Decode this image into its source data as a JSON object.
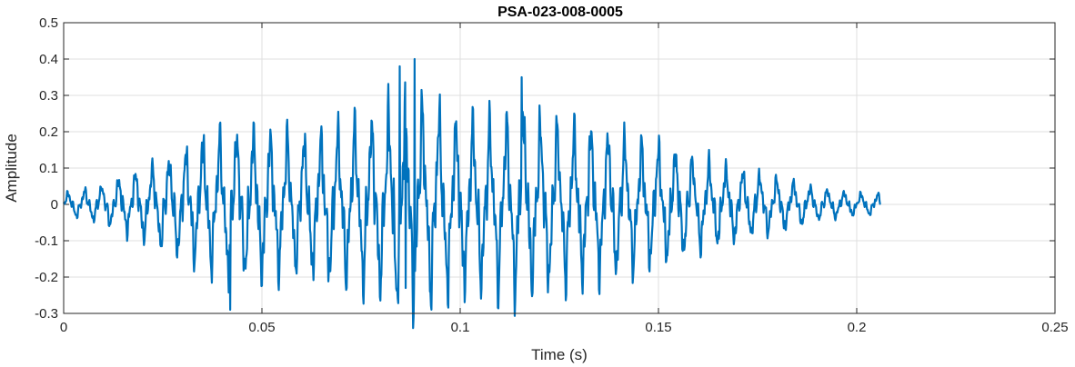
{
  "chart_data": {
    "type": "line",
    "title": "PSA-023-008-0005",
    "xlabel": "Time (s)",
    "ylabel": "Amplitude",
    "xlim": [
      0,
      0.25
    ],
    "ylim": [
      -0.3,
      0.5
    ],
    "x_ticks": [
      "0",
      "0.05",
      "0.1",
      "0.15",
      "0.2",
      "0.25"
    ],
    "y_ticks": [
      "-0.3",
      "-0.2",
      "-0.1",
      "0",
      "0.1",
      "0.2",
      "0.3",
      "0.4",
      "0.5"
    ],
    "grid": true,
    "series": [
      {
        "color": "#0072BD",
        "x_range": [
          0,
          0.206
        ],
        "samples_per_second": 8000,
        "envelope": {
          "t": [
            0,
            0.01,
            0.02,
            0.03,
            0.04,
            0.05,
            0.06,
            0.07,
            0.08,
            0.085,
            0.09,
            0.1,
            0.11,
            0.115,
            0.12,
            0.13,
            0.14,
            0.15,
            0.16,
            0.17,
            0.18,
            0.19,
            0.2,
            0.206
          ],
          "amp": [
            0.04,
            0.07,
            0.13,
            0.2,
            0.27,
            0.28,
            0.25,
            0.29,
            0.33,
            0.38,
            0.37,
            0.31,
            0.32,
            0.34,
            0.31,
            0.29,
            0.26,
            0.22,
            0.17,
            0.13,
            0.1,
            0.06,
            0.04,
            0.04
          ]
        },
        "peaks": [
          {
            "x": 0.0848,
            "y": 0.38
          },
          {
            "x": 0.0885,
            "y": 0.4
          },
          {
            "x": 0.1155,
            "y": 0.35
          },
          {
            "x": 0.042,
            "y": -0.29
          },
          {
            "x": 0.0862,
            "y": -0.23
          }
        ]
      }
    ]
  }
}
